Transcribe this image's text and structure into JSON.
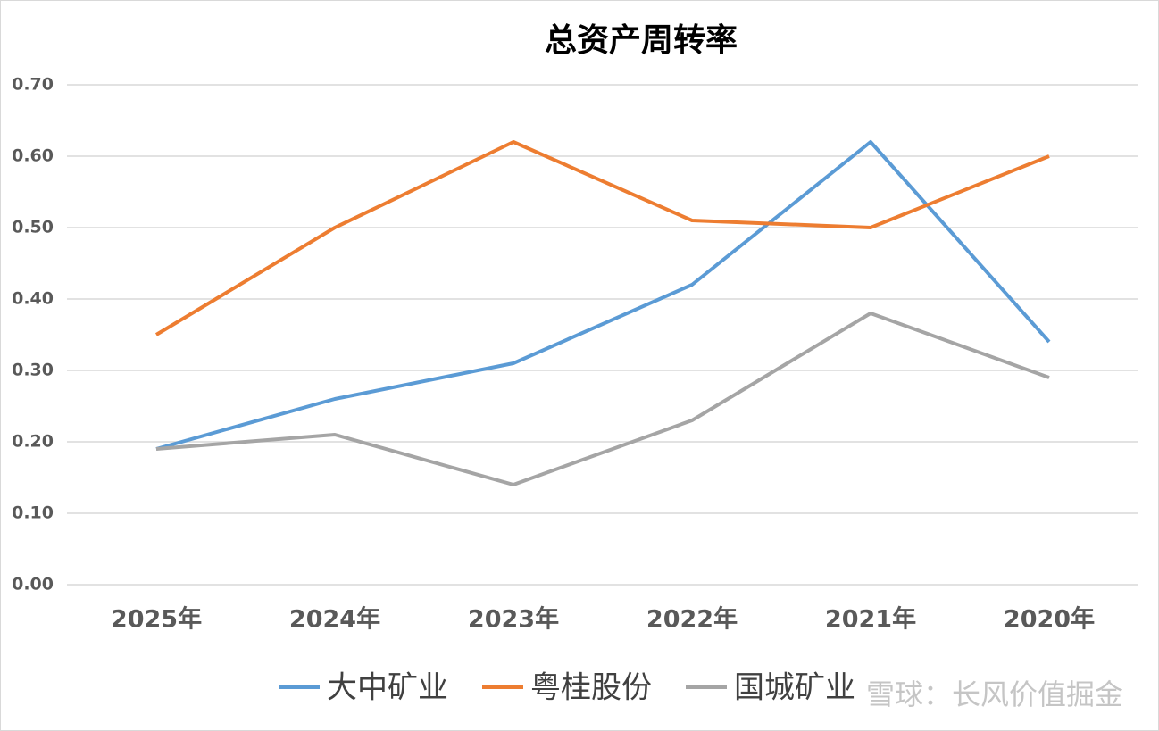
{
  "chart_data": {
    "type": "line",
    "title": "总资产周转率",
    "categories": [
      "2025年",
      "2024年",
      "2023年",
      "2022年",
      "2021年",
      "2020年"
    ],
    "series": [
      {
        "name": "大中矿业",
        "color": "#5b9bd5",
        "values": [
          0.19,
          0.26,
          0.31,
          0.42,
          0.62,
          0.34
        ]
      },
      {
        "name": "粤桂股份",
        "color": "#ed7d31",
        "values": [
          0.35,
          0.5,
          0.62,
          0.51,
          0.5,
          0.6
        ]
      },
      {
        "name": "国城矿业",
        "color": "#a5a5a5",
        "values": [
          0.19,
          0.21,
          0.14,
          0.23,
          0.38,
          0.29
        ]
      }
    ],
    "ylim": [
      0,
      0.7
    ],
    "yticks": [
      {
        "value": 0,
        "label": "0.00"
      },
      {
        "value": 0.1,
        "label": "0.10"
      },
      {
        "value": 0.2,
        "label": "0.20"
      },
      {
        "value": 0.3,
        "label": "0.30"
      },
      {
        "value": 0.4,
        "label": "0.40"
      },
      {
        "value": 0.5,
        "label": "0.50"
      },
      {
        "value": 0.6,
        "label": "0.60"
      },
      {
        "value": 0.7,
        "label": "0.70"
      }
    ],
    "grid": true,
    "legend": "bottom",
    "watermark": "雪球：长风价值掘金"
  }
}
